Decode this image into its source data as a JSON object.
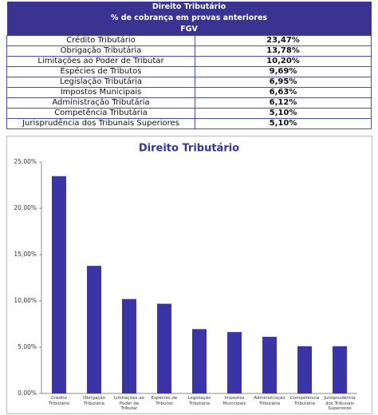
{
  "table": {
    "header": [
      "Direito Tributário",
      "% de cobrança em provas anteriores",
      "FGV"
    ],
    "rows": [
      [
        "Crédito Tributário",
        "23,47%"
      ],
      [
        "Obrigação Tributária",
        "13,78%"
      ],
      [
        "Limitações ao Poder de Tributar",
        "10,20%"
      ],
      [
        "Espécies de Tributos",
        "9,69%"
      ],
      [
        "Legislação Tributária",
        "6,95%"
      ],
      [
        "Impostos Municipais",
        "6,63%"
      ],
      [
        "Administração Tributária",
        "6,12%"
      ],
      [
        "Competência Tributária",
        "5,10%"
      ],
      [
        "Jurisprudência dos Tribunais Superiores",
        "5,10%"
      ]
    ]
  },
  "chart_data": {
    "type": "bar",
    "title": "Direito Tributário",
    "categories": [
      "Crédito Tributário",
      "Obrigação Tributária",
      "Limitações ao Poder de Tributar",
      "Espécies de Tributos",
      "Legislação Tributária",
      "Impostos Municipais",
      "Administração Tributária",
      "Competência Tributária",
      "Jurisprudência dos Tribunais Superiores"
    ],
    "values": [
      23.47,
      13.78,
      10.2,
      9.69,
      6.95,
      6.63,
      6.12,
      5.1,
      5.1
    ],
    "color": "#3b34a6",
    "ylim": [
      0,
      25
    ],
    "yticks": [
      {
        "value": 0,
        "label": "0,00%"
      },
      {
        "value": 5,
        "label": "5,00%"
      },
      {
        "value": 10,
        "label": "10,00%"
      },
      {
        "value": 15,
        "label": "15,00%"
      },
      {
        "value": 20,
        "label": "20,00%"
      },
      {
        "value": 25,
        "label": "25,00%"
      }
    ]
  }
}
